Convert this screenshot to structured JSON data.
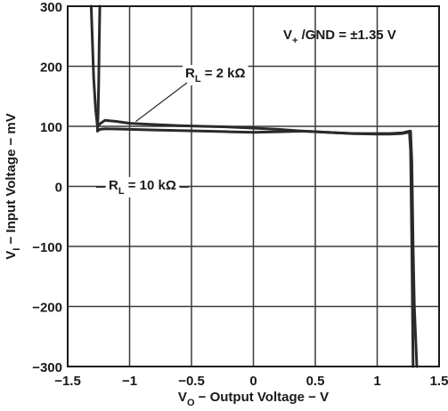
{
  "chart_data": {
    "type": "line",
    "xlabel_main": "V",
    "xlabel_sub": "O",
    "xlabel_rest": " − Output Voltage − V",
    "ylabel_main": "V",
    "ylabel_sub": "I",
    "ylabel_rest": " − Input Voltage − mV",
    "xlim": [
      -1.5,
      1.5
    ],
    "ylim": [
      -300,
      300
    ],
    "x_ticks": [
      -1.5,
      -1,
      -0.5,
      0,
      0.5,
      1,
      1.5
    ],
    "x_tick_labels": [
      "−1.5",
      "−1",
      "−0.5",
      "0",
      "0.5",
      "1",
      "1.5"
    ],
    "y_ticks": [
      -300,
      -200,
      -100,
      0,
      100,
      200,
      300
    ],
    "y_tick_labels": [
      "−300",
      "−200",
      "−100",
      "0",
      "100",
      "200",
      "300"
    ],
    "grid": true,
    "annotation": "V+ /GND = ±1.35 V",
    "annotation_parts": {
      "v": "V",
      "sub": "+",
      "rest": " /GND = ±1.35 V"
    },
    "series": [
      {
        "name": "RL = 2 kΩ",
        "label_parts": {
          "r": "R",
          "sub": "L",
          "rest": " = 2 kΩ"
        },
        "x": [
          -1.31,
          -1.3,
          -1.29,
          -1.275,
          -1.26,
          -1.24,
          -1.2,
          -1.1,
          -1.0,
          -0.8,
          -0.6,
          -0.4,
          -0.2,
          0,
          0.2,
          0.4,
          0.6,
          0.8,
          1.0,
          1.1,
          1.2,
          1.26,
          1.27,
          1.28,
          1.29
        ],
        "y": [
          300,
          240,
          180,
          130,
          100,
          104,
          110,
          108,
          105,
          103,
          101,
          100,
          99,
          97,
          95,
          92,
          90,
          88,
          88,
          88,
          89,
          92,
          60,
          -100,
          -300
        ]
      },
      {
        "name": "RL = 10 kΩ",
        "label_parts": {
          "r": "R",
          "sub": "L",
          "rest": " = 10 kΩ"
        },
        "x": [
          -1.24,
          -1.245,
          -1.25,
          -1.255,
          -1.26,
          -1.24,
          -1.2,
          -1.0,
          -0.8,
          -0.6,
          -0.4,
          -0.2,
          0,
          0.2,
          0.4,
          0.6,
          0.8,
          1.0,
          1.1,
          1.2,
          1.25,
          1.27,
          1.28,
          1.29,
          1.3,
          1.32
        ],
        "y": [
          300,
          240,
          170,
          120,
          92,
          95,
          96,
          95,
          94,
          93,
          92,
          91,
          90,
          91,
          92,
          90,
          88,
          87,
          87,
          88,
          90,
          92,
          40,
          -100,
          -200,
          -300
        ]
      }
    ]
  }
}
